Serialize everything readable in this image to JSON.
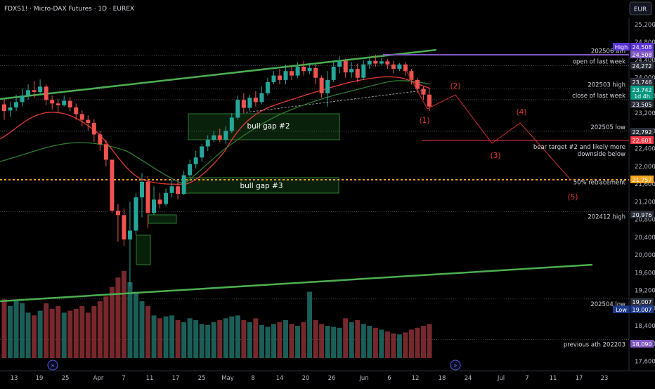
{
  "header": {
    "title": "FDXS1! · Micro-DAX Futures · 1D · EUREX",
    "currency": "EUR"
  },
  "chart_data": {
    "type": "candlestick",
    "ylim": [
      17400,
      25500
    ],
    "price_ticks": [
      "25,200",
      "24,800",
      "24,400",
      "24,000",
      "23,600",
      "23,200",
      "22,800",
      "22,400",
      "22,000",
      "21,600",
      "21,200",
      "20,800",
      "20,400",
      "20,000",
      "19,600",
      "19,200",
      "18,800",
      "18,400",
      "18,000",
      "17,600"
    ],
    "date_ticks": [
      "13",
      "19",
      "25",
      "Apr",
      "7",
      "11",
      "17",
      "25",
      "May",
      "8",
      "14",
      "20",
      "26",
      "Jun",
      "6",
      "12",
      "18",
      "24",
      "Jul",
      "7",
      "11",
      "17",
      "23"
    ],
    "candles": [
      [
        23400,
        23250,
        23520,
        23050
      ],
      [
        23260,
        23330,
        23460,
        23120
      ],
      [
        23330,
        23450,
        23620,
        23250
      ],
      [
        23450,
        23600,
        23760,
        23350
      ],
      [
        23600,
        23720,
        23850,
        23500
      ],
      [
        23720,
        23680,
        23930,
        23550
      ],
      [
        23680,
        23800,
        23960,
        23600
      ],
      [
        23800,
        23500,
        23850,
        23380
      ],
      [
        23500,
        23420,
        23600,
        23280
      ],
      [
        23420,
        23380,
        23520,
        23200
      ],
      [
        23380,
        23480,
        23600,
        23350
      ],
      [
        23480,
        23330,
        23560,
        23250
      ],
      [
        23330,
        23180,
        23420,
        23050
      ],
      [
        23180,
        23050,
        23260,
        22900
      ],
      [
        23050,
        22980,
        23150,
        22800
      ],
      [
        22980,
        22720,
        23060,
        22550
      ],
      [
        22720,
        22500,
        22800,
        22350
      ],
      [
        22500,
        22150,
        22600,
        22000
      ],
      [
        22150,
        21000,
        22150,
        20950
      ],
      [
        21000,
        20900,
        21150,
        20300
      ],
      [
        20900,
        20350,
        21050,
        20200
      ],
      [
        20350,
        20550,
        21200,
        19300
      ],
      [
        20550,
        21300,
        21400,
        20450
      ],
      [
        21300,
        21650,
        21850,
        20850
      ],
      [
        21650,
        20950,
        21780,
        20600
      ],
      [
        20950,
        21250,
        21550,
        20900
      ],
      [
        21250,
        21150,
        21400,
        21050
      ],
      [
        21150,
        21400,
        21500,
        21100
      ],
      [
        21400,
        21550,
        21700,
        21300
      ],
      [
        21550,
        21380,
        21650,
        21250
      ],
      [
        21380,
        21800,
        21900,
        21350
      ],
      [
        21800,
        22050,
        22150,
        21750
      ],
      [
        22050,
        22200,
        22350,
        21950
      ],
      [
        22200,
        22450,
        22500,
        22100
      ],
      [
        22450,
        22600,
        22700,
        22350
      ],
      [
        22600,
        22700,
        22800,
        22550
      ],
      [
        22700,
        22600,
        22850,
        22550
      ],
      [
        22600,
        22800,
        22900,
        22500
      ],
      [
        22800,
        23100,
        23200,
        22750
      ],
      [
        23100,
        23500,
        23600,
        23050
      ],
      [
        23500,
        23320,
        23650,
        23200
      ],
      [
        23320,
        23550,
        23620,
        23250
      ],
      [
        23550,
        23450,
        23700,
        23350
      ],
      [
        23450,
        23650,
        23800,
        23400
      ],
      [
        23650,
        23900,
        24000,
        23600
      ],
      [
        23900,
        24050,
        24150,
        23850
      ],
      [
        24050,
        23950,
        24200,
        23850
      ],
      [
        23950,
        24150,
        24300,
        23850
      ],
      [
        24150,
        24050,
        24250,
        23950
      ],
      [
        24050,
        24250,
        24350,
        24000
      ],
      [
        24250,
        24150,
        24380,
        24050
      ],
      [
        24150,
        24220,
        24330,
        24080
      ],
      [
        24220,
        24000,
        24300,
        23850
      ],
      [
        24000,
        23650,
        24050,
        23550
      ],
      [
        23650,
        23950,
        24150,
        23350
      ],
      [
        23950,
        24250,
        24380,
        23900
      ],
      [
        24250,
        24380,
        24480,
        24100
      ],
      [
        24380,
        24120,
        24430,
        24000
      ],
      [
        24120,
        24200,
        24350,
        24000
      ],
      [
        24200,
        24000,
        24320,
        23900
      ],
      [
        24000,
        24300,
        24400,
        23950
      ],
      [
        24300,
        24380,
        24450,
        24200
      ],
      [
        24380,
        24320,
        24520,
        24250
      ],
      [
        24320,
        24370,
        24450,
        24280
      ],
      [
        24370,
        24300,
        24420,
        24200
      ],
      [
        24300,
        24200,
        24380,
        24100
      ],
      [
        24200,
        24300,
        24330,
        24150
      ],
      [
        24300,
        24150,
        24350,
        24050
      ],
      [
        24150,
        23950,
        24200,
        23850
      ],
      [
        23950,
        23750,
        24000,
        23650
      ],
      [
        23750,
        23620,
        23800,
        23500
      ],
      [
        23620,
        23350,
        23750,
        23250
      ]
    ],
    "volume": [
      62,
      55,
      60,
      58,
      48,
      45,
      50,
      58,
      52,
      55,
      48,
      50,
      52,
      55,
      48,
      55,
      60,
      65,
      75,
      85,
      92,
      80,
      70,
      60,
      55,
      45,
      42,
      44,
      45,
      40,
      38,
      42,
      40,
      36,
      35,
      38,
      40,
      42,
      44,
      45,
      40,
      38,
      42,
      35,
      33,
      36,
      38,
      40,
      36,
      34,
      38,
      70,
      40,
      36,
      34,
      33,
      32,
      42,
      38,
      40,
      36,
      34,
      32,
      30,
      28,
      26,
      25,
      27,
      30,
      32,
      34,
      36
    ],
    "volume_colors": "by-candle",
    "price_labels": [
      {
        "label": "High",
        "value": "24,508",
        "color": "#5b34d8"
      },
      {
        "label": "",
        "value": "24,508",
        "color": "#7e57c2"
      },
      {
        "label": "",
        "value": "24,272",
        "color": "#2a2e39"
      },
      {
        "label": "",
        "value": "23,746",
        "color": "#2a2e39"
      },
      {
        "label": "",
        "value": "23,742",
        "color": "#089981"
      },
      {
        "label": "",
        "value": "1d 4h",
        "color": "#089981"
      },
      {
        "label": "",
        "value": "23,505",
        "color": "#2a2e39"
      },
      {
        "label": "",
        "value": "22,792",
        "color": "#2a2e39"
      },
      {
        "label": "",
        "value": "22,601",
        "color": "#f23645"
      },
      {
        "label": "",
        "value": "21,757",
        "color": "#f7a21b"
      },
      {
        "label": "",
        "value": "20,976",
        "color": "#2a2e39"
      },
      {
        "label": "",
        "value": "19,007",
        "color": "#2a2e39"
      },
      {
        "label": "Low",
        "value": "19,007",
        "color": "#1e3a8a"
      },
      {
        "label": "",
        "value": "18,090",
        "color": "#7e57c2"
      }
    ],
    "level_lines": [
      {
        "text": "202506 ath",
        "price": 24508,
        "color": "#7e57c2"
      },
      {
        "text": "open of last week",
        "price": 24272
      },
      {
        "text": "202503 high",
        "price": 23746
      },
      {
        "text": "close of last week",
        "price": 23505
      },
      {
        "text": "202505 low",
        "price": 22792
      },
      {
        "text": "bear target #2 and likely more",
        "price": 22601,
        "color": "#f23645"
      },
      {
        "text": "downside below",
        "price": 22601
      },
      {
        "text": "50% retracement",
        "price": 21757,
        "color": "#f7a21b"
      },
      {
        "text": "202412 high",
        "price": 20976
      },
      {
        "text": "202504 low",
        "price": 19007
      },
      {
        "text": "previous ath 202203",
        "price": 18090
      }
    ],
    "annotations": [
      {
        "text": "bull gap #2"
      },
      {
        "text": "bull gap #3"
      }
    ],
    "wave_labels": [
      "(1)",
      "(2)",
      "(3)",
      "(4)",
      "(5)"
    ],
    "moving_averages": [
      "ema-20",
      "ema-50"
    ],
    "grid": false,
    "colors": {
      "up": "#26a69a",
      "down": "#ef5350",
      "trend": "#4caf50",
      "ema_fast": "#e53935",
      "ema_slow": "#2e7d32",
      "wave": "#d32f2f"
    }
  }
}
